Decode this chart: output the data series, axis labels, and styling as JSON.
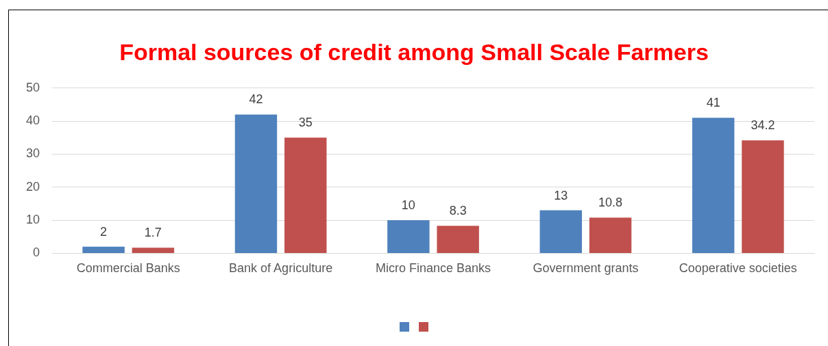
{
  "chart_data": {
    "type": "bar",
    "title": "Formal sources of credit among Small Scale Farmers",
    "categories": [
      "Commercial Banks",
      "Bank of Agriculture",
      "Micro Finance Banks",
      "Government grants",
      "Cooperative societies"
    ],
    "series": [
      {
        "color": "#4f81bd",
        "values": [
          2,
          42,
          10,
          13,
          41
        ]
      },
      {
        "color": "#c0504d",
        "values": [
          1.7,
          35,
          8.3,
          10.8,
          34.2
        ]
      }
    ],
    "ylim": [
      0,
      50
    ],
    "yticks": [
      0,
      10,
      20,
      30,
      40,
      50
    ],
    "grid": "y",
    "data_labels": true
  }
}
